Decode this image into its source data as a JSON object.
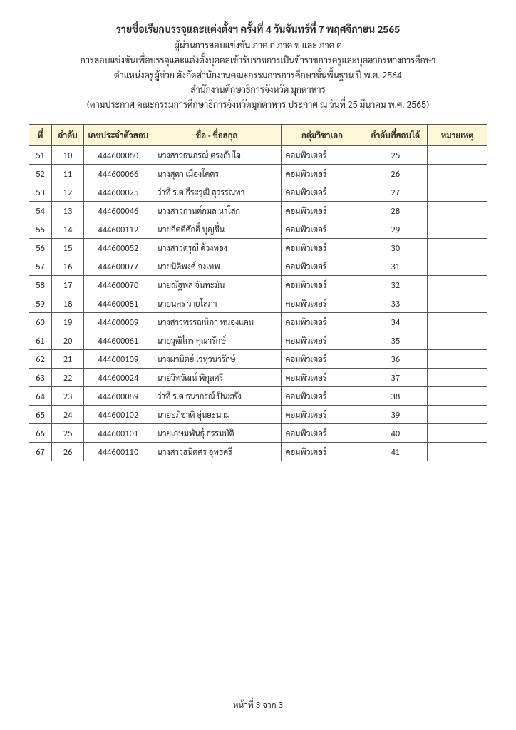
{
  "header": {
    "title": "รายชื่อเรียกบรรจุและแต่งตั้งฯ ครั้งที่ 4  วันจันทร์ที่  7  พฤศจิกายน  2565",
    "lines": [
      "ผู้ผ่านการสอบแข่งขัน ภาค ก ภาค ข และ ภาค ค",
      "การสอบแข่งขันเพื่อบรรจุและแต่งตั้งบุคคลเข้ารับราชการเป็นข้าราชการครูและบุคลากรทางการศึกษา",
      "ตำแหน่งครูผู้ช่วย สังกัดสำนักงานคณะกรรมการการศึกษาขั้นพื้นฐาน ปี พ.ศ. 2564",
      "สำนักงานศึกษาธิการจังหวัด มุกดาหาร",
      "(ตามประกาศ คณะกรรมการศึกษาธิการจังหวัดมุกดาหาร  ประกาศ ณ วันที่  25  มีนาคม  พ.ศ. 2565)"
    ]
  },
  "columns": [
    "ที่",
    "ลำดับ",
    "เลขประจำตัวสอบ",
    "ชื่อ - ชื่อสกุล",
    "กลุ่มวิชาเอก",
    "ลำดับที่สอบได้",
    "หมายเหตุ"
  ],
  "rows": [
    [
      "51",
      "10",
      "444600060",
      "นางสาวธนภรณ์   ตรงกับใจ",
      "คอมพิวเตอร์",
      "25",
      ""
    ],
    [
      "52",
      "11",
      "444600066",
      "นางสุดา   เมืองโคตร",
      "คอมพิวเตอร์",
      "26",
      ""
    ],
    [
      "53",
      "12",
      "444600025",
      "ว่าที่ ร.ต.ธีระวุฒิ   สุวรรณทา",
      "คอมพิวเตอร์",
      "27",
      ""
    ],
    [
      "54",
      "13",
      "444600046",
      "นางสาวกานต์กมล   นาโสก",
      "คอมพิวเตอร์",
      "28",
      ""
    ],
    [
      "55",
      "14",
      "444600112",
      "นายกิตติศักดิ์   บุญชื่น",
      "คอมพิวเตอร์",
      "29",
      ""
    ],
    [
      "56",
      "15",
      "444600052",
      "นางสาวดรุณี   ด้วงทอง",
      "คอมพิวเตอร์",
      "30",
      ""
    ],
    [
      "57",
      "16",
      "444600077",
      "นายนิติพงศ์   จงเทพ",
      "คอมพิวเตอร์",
      "31",
      ""
    ],
    [
      "58",
      "17",
      "444600070",
      "นายณัฐพล   จันทะมัน",
      "คอมพิวเตอร์",
      "32",
      ""
    ],
    [
      "59",
      "18",
      "444600081",
      "นายนคร   วายโสภา",
      "คอมพิวเตอร์",
      "33",
      ""
    ],
    [
      "60",
      "19",
      "444600009",
      "นางสาวพรรณนิภา   หนองแคน",
      "คอมพิวเตอร์",
      "34",
      ""
    ],
    [
      "61",
      "20",
      "444600061",
      "นายวุฒิไกร   คุณารักษ์",
      "คอมพิวเตอร์",
      "35",
      ""
    ],
    [
      "62",
      "21",
      "444600109",
      "นางผานิตย์   เวหุวนารักษ์",
      "คอมพิวเตอร์",
      "36",
      ""
    ],
    [
      "63",
      "22",
      "444600024",
      "นายวิทวัฒน์   พิกุลศรี",
      "คอมพิวเตอร์",
      "37",
      ""
    ],
    [
      "64",
      "23",
      "444600089",
      "ว่าที่ ร.ต.ธนากรณ์   ปินะพัง",
      "คอมพิวเตอร์",
      "38",
      ""
    ],
    [
      "65",
      "24",
      "444600102",
      "นายอภิชาติ   อุ่นยะนาม",
      "คอมพิวเตอร์",
      "39",
      ""
    ],
    [
      "66",
      "25",
      "444600101",
      "นายเกษมพันธุ์   ธรรมบัติ",
      "คอมพิวเตอร์",
      "40",
      ""
    ],
    [
      "67",
      "26",
      "444600110",
      "นางสาวธนิตศร   อุทธศรี",
      "คอมพิวเตอร์",
      "41",
      ""
    ]
  ],
  "footer": "หน้าที่ 3 จาก 3"
}
